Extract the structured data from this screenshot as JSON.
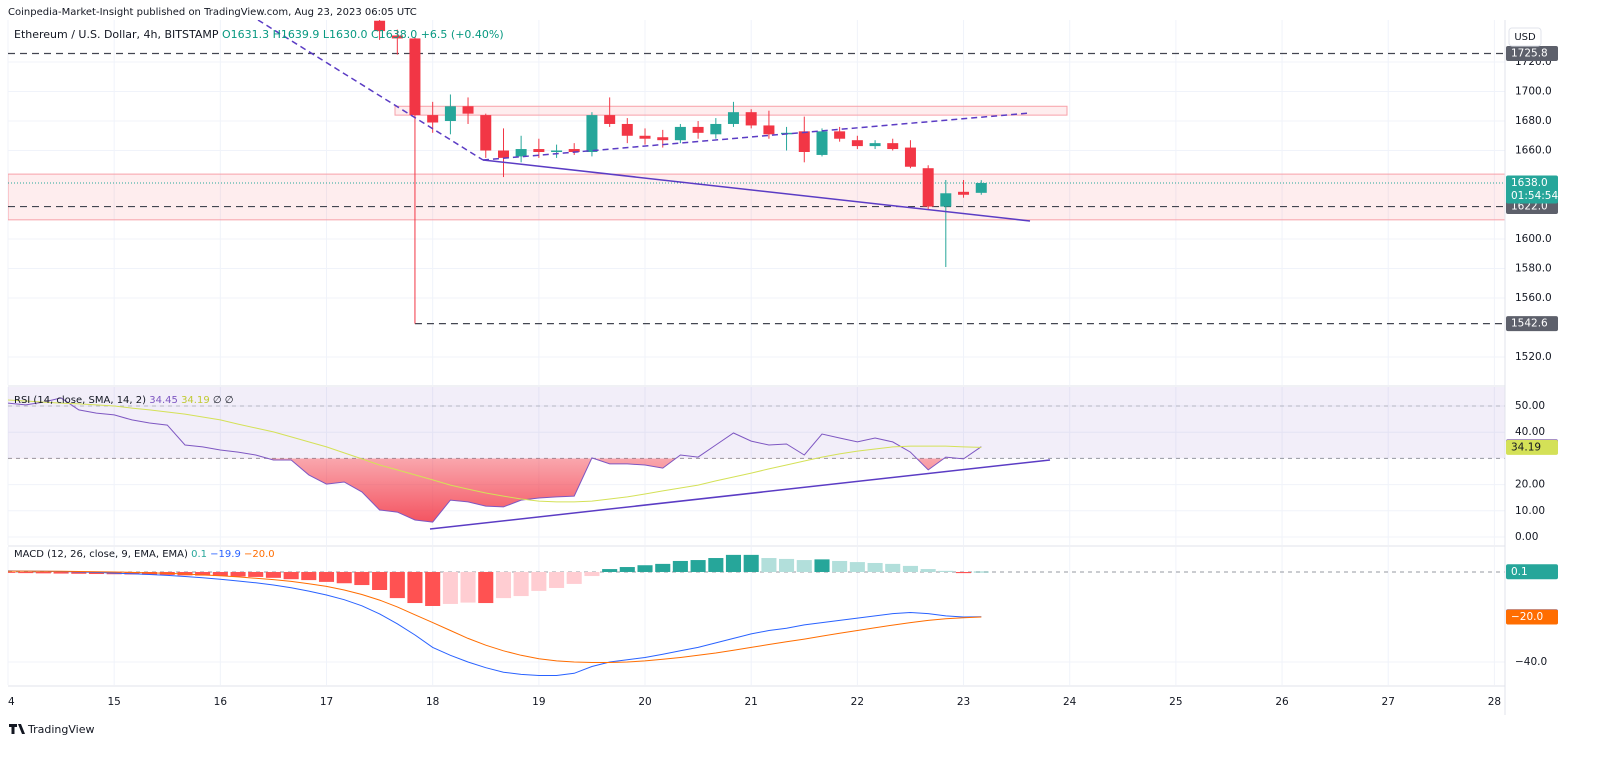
{
  "header": {
    "publisher": "Coinpedia-Market-Insight published on TradingView.com, Aug 23, 2023 06:05 UTC",
    "currency": "USD",
    "brand": "TradingView"
  },
  "chart_data": [
    {
      "type": "candlestick",
      "title": "Ethereum / U.S. Dollar, 4h, BITSTAMP",
      "ohlc_legend": [
        "O1631.3",
        "H1639.9",
        "L1630.0",
        "C1638.0",
        "+6.5 (+0.40%)"
      ],
      "up_color": "#26a69a",
      "down_color": "#f23645",
      "x": [
        17.5,
        17.667,
        17.833,
        18,
        18.167,
        18.333,
        18.5,
        18.667,
        18.833,
        19,
        19.167,
        19.333,
        19.5,
        19.667,
        19.833,
        20,
        20.167,
        20.333,
        20.5,
        20.667,
        20.833,
        21,
        21.167,
        21.333,
        21.5,
        21.667,
        21.833,
        22,
        22.167,
        22.333,
        22.5,
        22.667,
        22.833,
        23,
        23.167
      ],
      "open": [
        1748,
        1738,
        1736,
        1684,
        1680,
        1690,
        1684,
        1660,
        1656,
        1661,
        1659,
        1661,
        1659,
        1684,
        1678,
        1670,
        1669,
        1667,
        1676,
        1671,
        1678,
        1686,
        1677,
        1671,
        1673,
        1657,
        1673,
        1667,
        1663,
        1665,
        1662,
        1648,
        1622,
        1632,
        1631.3
      ],
      "high": [
        1760,
        1742,
        1737,
        1693,
        1698,
        1696,
        1685,
        1675,
        1670,
        1668,
        1664,
        1665,
        1686,
        1696,
        1682,
        1675,
        1674,
        1678,
        1680,
        1682,
        1693,
        1688,
        1687,
        1676,
        1683,
        1675,
        1676,
        1670,
        1667,
        1668,
        1667,
        1650,
        1640,
        1640,
        1639.9
      ],
      "low": [
        1735,
        1725,
        1542.6,
        1672,
        1671,
        1678,
        1655,
        1642,
        1652,
        1655,
        1655,
        1657,
        1656,
        1676,
        1665,
        1664,
        1662,
        1665,
        1668,
        1668,
        1676,
        1675,
        1668,
        1660,
        1652,
        1656,
        1666,
        1661,
        1661,
        1660,
        1648,
        1620,
        1581,
        1628,
        1630
      ],
      "close": [
        1741,
        1736,
        1684,
        1679,
        1690,
        1685,
        1660,
        1655,
        1661,
        1659,
        1660,
        1659,
        1684,
        1678,
        1670,
        1668,
        1667,
        1676,
        1672,
        1678,
        1686,
        1677,
        1671,
        1672,
        1659,
        1673,
        1668,
        1663,
        1665,
        1661,
        1649,
        1622,
        1631,
        1630,
        1638
      ],
      "xlim": [
        14,
        28.1
      ],
      "ylim": [
        1501,
        1748.5
      ],
      "yticks": [
        {
          "value": 1520,
          "label": "1520.0"
        },
        {
          "value": 1560,
          "label": "1560.0"
        },
        {
          "value": 1580,
          "label": "1580.0"
        },
        {
          "value": 1600,
          "label": "1600.0"
        },
        {
          "value": 1660,
          "label": "1660.0"
        },
        {
          "value": 1680,
          "label": "1680.0"
        },
        {
          "value": 1700,
          "label": "1700.0"
        },
        {
          "value": 1720,
          "label": "1720.0"
        }
      ],
      "levels": [
        {
          "value": 1725.8,
          "label": "1725.8"
        },
        {
          "value": 1622.0,
          "label": "1622.0"
        },
        {
          "value": 1542.6,
          "label": "1542.6"
        }
      ],
      "zones": [
        {
          "low": 1684,
          "high": 1690
        },
        {
          "low": 1613,
          "high": 1644
        }
      ],
      "last_price": {
        "value": 1638.0,
        "label": "1638.0"
      },
      "countdown": "01:54:54",
      "xticks": [
        {
          "value": 14,
          "label": "4"
        },
        15,
        16,
        17,
        18,
        19,
        20,
        21,
        22,
        23,
        24,
        25,
        26,
        27,
        28
      ],
      "grid": true
    },
    {
      "type": "line",
      "title": "RSI (14, close, SMA, 14, 2)",
      "legend_extra": "∅ ∅",
      "x": [
        14,
        14.167,
        14.333,
        14.5,
        14.667,
        14.833,
        15,
        15.167,
        15.333,
        15.5,
        15.667,
        15.833,
        16,
        16.167,
        16.333,
        16.5,
        16.667,
        16.833,
        17,
        17.167,
        17.333,
        17.5,
        17.667,
        17.833,
        18,
        18.167,
        18.333,
        18.5,
        18.667,
        18.833,
        19,
        19.167,
        19.333,
        19.5,
        19.667,
        19.833,
        20,
        20.167,
        20.333,
        20.5,
        20.667,
        20.833,
        21,
        21.167,
        21.333,
        21.5,
        21.667,
        21.833,
        22,
        22.167,
        22.333,
        22.5,
        22.667,
        22.833,
        23,
        23.167
      ],
      "series": [
        {
          "color": "#7e57c2",
          "values": [
            51.1,
            50.4,
            51.5,
            53.1,
            48.5,
            47.3,
            46.6,
            44.7,
            43.5,
            42.7,
            35.1,
            34.4,
            33.2,
            32.4,
            31.3,
            29.4,
            29.4,
            23.7,
            20.2,
            21.0,
            17.2,
            10.3,
            9.5,
            6.5,
            5.7,
            14.1,
            13.4,
            11.8,
            11.5,
            14.1,
            14.9,
            15.3,
            15.6,
            30.2,
            27.9,
            27.9,
            27.5,
            26.3,
            31.3,
            30.5,
            35.1,
            39.7,
            36.6,
            35.1,
            35.5,
            31.3,
            39.3,
            37.8,
            36.3,
            37.8,
            36.3,
            32.4,
            25.6,
            30.5,
            29.8,
            34.45
          ],
          "value_label": "34.45",
          "label_text": "#ffffff"
        },
        {
          "color": "#d4e157",
          "values": [
            52.3,
            51.9,
            51.5,
            51.1,
            50.8,
            50.4,
            50.0,
            49.2,
            48.5,
            47.7,
            46.9,
            45.8,
            44.7,
            43.1,
            41.6,
            40.1,
            38.2,
            36.3,
            34.4,
            32.1,
            29.8,
            27.5,
            25.6,
            23.7,
            21.8,
            19.8,
            18.3,
            16.8,
            15.6,
            14.5,
            13.7,
            13.4,
            13.4,
            13.7,
            14.5,
            15.3,
            16.4,
            17.6,
            18.7,
            19.8,
            21.4,
            22.9,
            24.4,
            26.0,
            27.5,
            29.0,
            30.5,
            31.7,
            32.8,
            33.6,
            34.4,
            34.7,
            34.7,
            34.7,
            34.4,
            34.19
          ],
          "value_label": "34.19",
          "label_text": "#131722"
        }
      ],
      "band": [
        30,
        70
      ],
      "xlim": [
        14,
        28.1
      ],
      "ylim": [
        -3.05,
        57.25
      ],
      "yticks": [
        {
          "value": 0,
          "label": "0.00"
        },
        {
          "value": 10,
          "label": "10.00"
        },
        {
          "value": 20,
          "label": "20.00"
        },
        {
          "value": 40,
          "label": "40.00"
        },
        {
          "value": 50,
          "label": "50.00"
        }
      ]
    },
    {
      "type": "line",
      "title": "MACD (12, 26, close, 9, EMA, EMA)",
      "x": [
        14,
        14.167,
        14.333,
        14.5,
        14.667,
        14.833,
        15,
        15.167,
        15.333,
        15.5,
        15.667,
        15.833,
        16,
        16.167,
        16.333,
        16.5,
        16.667,
        16.833,
        17,
        17.167,
        17.333,
        17.5,
        17.667,
        17.833,
        18,
        18.167,
        18.333,
        18.5,
        18.667,
        18.833,
        19,
        19.167,
        19.333,
        19.5,
        19.667,
        19.833,
        20,
        20.167,
        20.333,
        20.5,
        20.667,
        20.833,
        21,
        21.167,
        21.333,
        21.5,
        21.667,
        21.833,
        22,
        22.167,
        22.333,
        22.5,
        22.667,
        22.833,
        23,
        23.167
      ],
      "series": [
        {
          "type": "bar",
          "color": "#26a69a",
          "values": [
            -0.4,
            -0.5,
            -0.6,
            -0.7,
            -0.8,
            -0.9,
            -1.0,
            -1.1,
            -1.2,
            -1.3,
            -1.5,
            -1.6,
            -1.8,
            -2.0,
            -2.2,
            -2.6,
            -3.2,
            -3.6,
            -4.4,
            -5.0,
            -5.8,
            -8.0,
            -11.6,
            -13.8,
            -15.1,
            -14.2,
            -13.6,
            -13.8,
            -11.6,
            -10.7,
            -8.4,
            -7.1,
            -5.3,
            -1.8,
            1.3,
            2.2,
            3.0,
            3.6,
            4.9,
            5.3,
            6.2,
            7.6,
            7.6,
            6.2,
            5.8,
            5.3,
            5.6,
            4.9,
            4.4,
            4.0,
            3.6,
            2.7,
            1.3,
            0.5,
            -0.5,
            0.1
          ],
          "value_label": "0.1"
        },
        {
          "color": "#2962ff",
          "values": [
            0.5,
            0.4,
            0.3,
            0.2,
            0,
            -0.2,
            -0.5,
            -0.8,
            -1.1,
            -1.5,
            -2.0,
            -2.6,
            -3.2,
            -4.0,
            -4.8,
            -5.8,
            -7.0,
            -8.5,
            -10.2,
            -12.3,
            -15.0,
            -18.6,
            -23,
            -28,
            -33.5,
            -37,
            -40,
            -42.5,
            -44.5,
            -45.5,
            -46,
            -46,
            -45,
            -42,
            -40,
            -39,
            -38,
            -36.5,
            -35,
            -33.5,
            -31.5,
            -29.5,
            -27.5,
            -26,
            -25,
            -23.5,
            -22.5,
            -21.5,
            -20.5,
            -19.5,
            -18.5,
            -18,
            -18.5,
            -19.5,
            -20,
            -19.9
          ],
          "value_label": "−19.9"
        },
        {
          "color": "#ff6d00",
          "values": [
            0.4,
            0.4,
            0.3,
            0.3,
            0.2,
            0.1,
            0,
            -0.2,
            -0.4,
            -0.6,
            -0.9,
            -1.3,
            -1.7,
            -2.2,
            -2.8,
            -3.4,
            -4.2,
            -5.2,
            -6.4,
            -8,
            -10,
            -12.5,
            -15.5,
            -19,
            -22.5,
            -26,
            -29.5,
            -32.5,
            -35,
            -37,
            -38.5,
            -39.5,
            -40,
            -40.2,
            -40.2,
            -40,
            -39.5,
            -38.8,
            -38,
            -37,
            -36,
            -34.8,
            -33.5,
            -32.2,
            -31,
            -29.8,
            -28.5,
            -27.2,
            -26,
            -24.8,
            -23.6,
            -22.5,
            -21.5,
            -20.8,
            -20.3,
            -20.0
          ],
          "value_label": "−20.0"
        }
      ],
      "xlim": [
        14,
        28.1
      ],
      "ylim": [
        -50.2,
        11.1
      ],
      "yticks": [
        {
          "value": -40,
          "label": "−40.0"
        }
      ]
    }
  ]
}
